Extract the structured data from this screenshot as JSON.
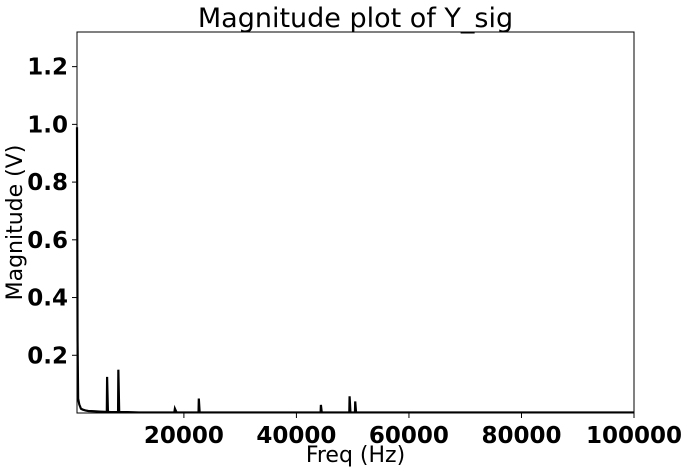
{
  "chart_data": {
    "type": "line",
    "title": "Magnitude plot of Y_sig",
    "xlabel": "Freq (Hz)",
    "ylabel": "Magnitude (V)",
    "xlim": [
      1000,
      100000
    ],
    "ylim": [
      0.0,
      1.32
    ],
    "xticks": [
      20000,
      40000,
      60000,
      80000,
      100000
    ],
    "xtick_labels": [
      "20000",
      "40000",
      "60000",
      "80000",
      "100000"
    ],
    "yticks": [
      0.2,
      0.4,
      0.6,
      0.8,
      1.0,
      1.2
    ],
    "ytick_labels": [
      "0.2",
      "0.4",
      "0.6",
      "0.8",
      "1.0",
      "1.2"
    ],
    "grid": false,
    "legend": "none",
    "line_color": "#000000",
    "series": [
      {
        "x": [
          1000,
          1100,
          1200,
          1400,
          1700,
          2000,
          2500,
          3000,
          4000,
          5000,
          6000,
          6300,
          6350,
          6500,
          7000,
          8000,
          8300,
          8350,
          8500,
          10000,
          12000,
          14000,
          16000,
          17000,
          18000,
          18300,
          18400,
          18700,
          19000,
          21000,
          22600,
          22650,
          22800,
          25000,
          30000,
          35000,
          40000,
          44300,
          44350,
          44500,
          48000,
          49400,
          49450,
          49600,
          50400,
          50450,
          50600,
          55000,
          60000,
          70000,
          80000,
          90000,
          100000
        ],
        "y": [
          0.99,
          0.25,
          0.05,
          0.03,
          0.015,
          0.012,
          0.009,
          0.007,
          0.006,
          0.005,
          0.004,
          0.004,
          0.125,
          0.004,
          0.003,
          0.003,
          0.003,
          0.15,
          0.003,
          0.003,
          0.002,
          0.002,
          0.002,
          0.002,
          0.002,
          0.002,
          0.015,
          0.002,
          0.002,
          0.002,
          0.002,
          0.05,
          0.002,
          0.002,
          0.002,
          0.002,
          0.002,
          0.002,
          0.028,
          0.002,
          0.002,
          0.002,
          0.058,
          0.002,
          0.002,
          0.04,
          0.002,
          0.002,
          0.002,
          0.002,
          0.002,
          0.002,
          0.002
        ]
      }
    ]
  }
}
